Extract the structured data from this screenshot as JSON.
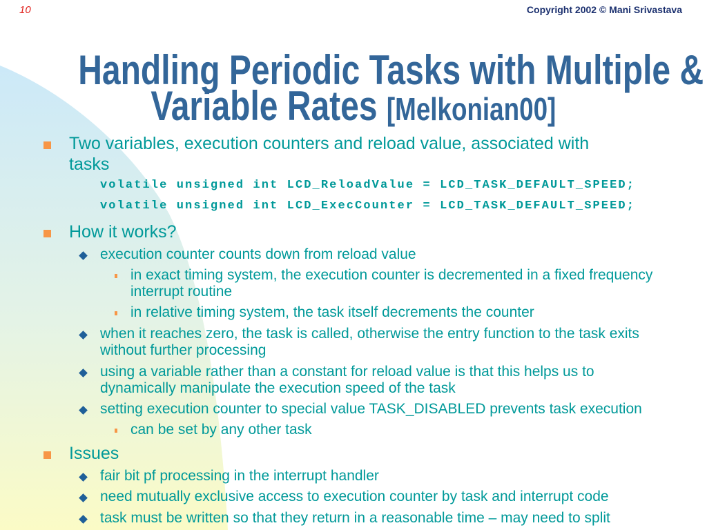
{
  "slide": {
    "page_number": "10",
    "copyright": "Copyright 2002 © Mani Srivastava",
    "title_line1": "Handling Periodic Tasks with Multiple &",
    "title_line2": "Variable Rates ",
    "title_citation": "[Melkonian00]",
    "colors": {
      "title": "#336699",
      "body": "#009999",
      "bullet": "#f79646",
      "diamond": "#1f5f99"
    }
  },
  "bullets": {
    "b1": {
      "line1": "Two variables, execution counters and reload value, associated with",
      "line2": "tasks"
    },
    "code1": "volatile unsigned int LCD_ReloadValue = LCD_TASK_DEFAULT_SPEED;",
    "code2": "volatile unsigned int LCD_ExecCounter = LCD_TASK_DEFAULT_SPEED;",
    "b2": "How it works?",
    "b2_1": "execution counter counts down from reload value",
    "b2_1_1": {
      "line1": "in exact timing system, the execution counter is decremented in a fixed frequency",
      "line2": "interrupt routine"
    },
    "b2_1_2": "in relative timing system, the task itself decrements the counter",
    "b2_2": {
      "line1": "when it reaches zero, the task is called, otherwise the entry function to the task exits",
      "line2": "without further processing"
    },
    "b2_3": {
      "line1": "using a variable rather than a constant for reload value is that this helps us to",
      "line2": "dynamically manipulate the execution speed of the task"
    },
    "b2_4": "setting execution counter to special value TASK_DISABLED prevents task execution",
    "b2_4_1": "can be set by any other task",
    "b3": "Issues",
    "b3_1": "fair bit pf processing in the interrupt handler",
    "b3_2": "need mutually exclusive access to execution counter by task and interrupt code",
    "b3_3": "task must be written so that they return in a reasonable time – may need to split"
  }
}
